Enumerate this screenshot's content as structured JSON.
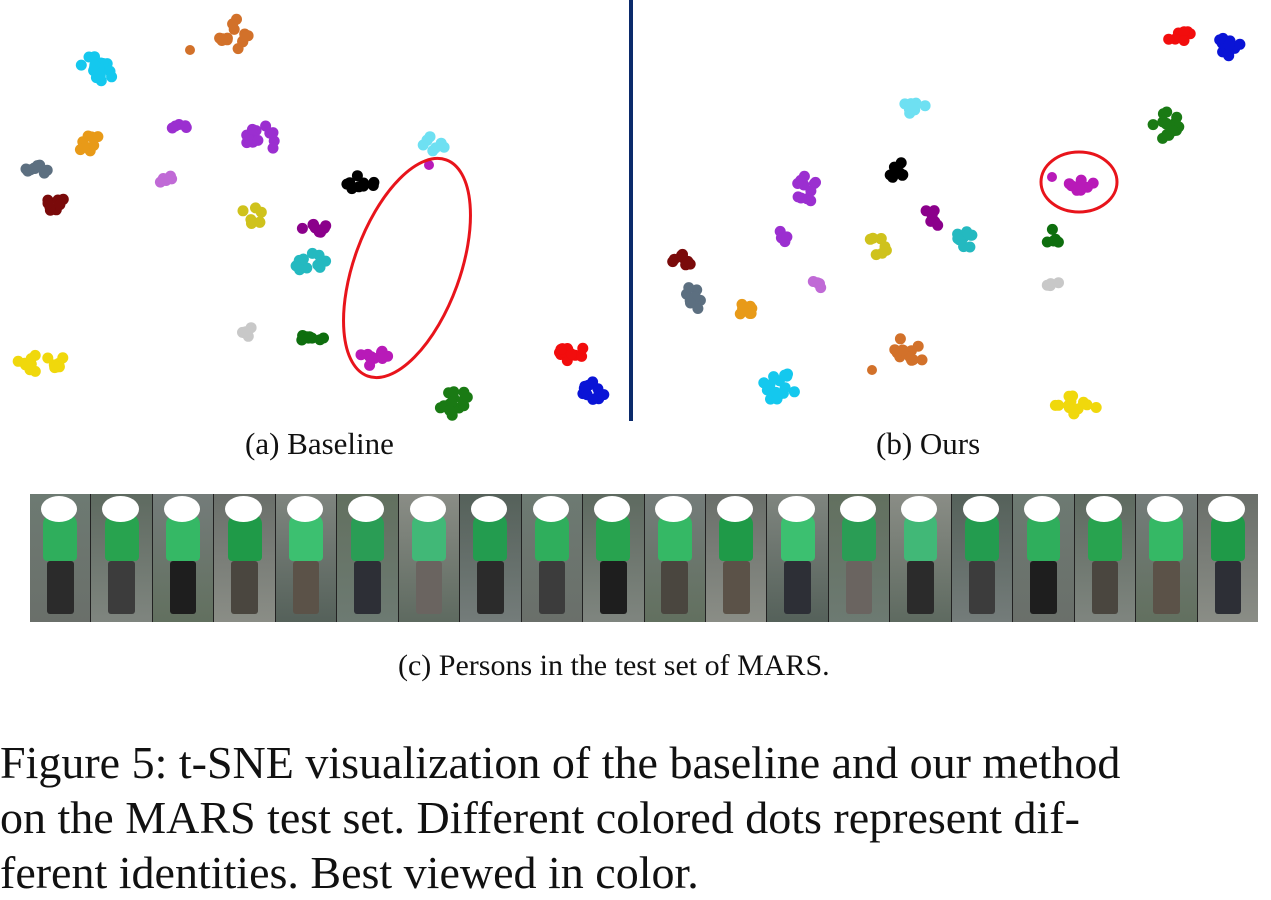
{
  "panels": {
    "a": {
      "caption": "(a) Baseline"
    },
    "b": {
      "caption": "(b) Ours"
    }
  },
  "divider_color": "#0b2a6b",
  "highlight_color": "#e8141b",
  "identity_colors": [
    "#f20d0d",
    "#0a14d6",
    "#1a7a14",
    "#6ee0f2",
    "#14c8ee",
    "#000000",
    "#9b2fd0",
    "#8b008b",
    "#7a0a0a",
    "#5c6f80",
    "#e89a18",
    "#cfc21c",
    "#24b9c0",
    "#c06ad6",
    "#c8c8c8",
    "#0e6e0e",
    "#b81ab8",
    "#f0d80c",
    "#d2712a",
    "#ef9ee8"
  ],
  "strip_caption": "(c) Persons in the test set of MARS.",
  "persons_count_visible": 20,
  "figure_caption_lines": [
    "Figure 5: t-SNE visualization of the baseline and our method",
    "on the MARS test set. Different colored dots represent dif-",
    "ferent identities. Best viewed in color."
  ]
}
